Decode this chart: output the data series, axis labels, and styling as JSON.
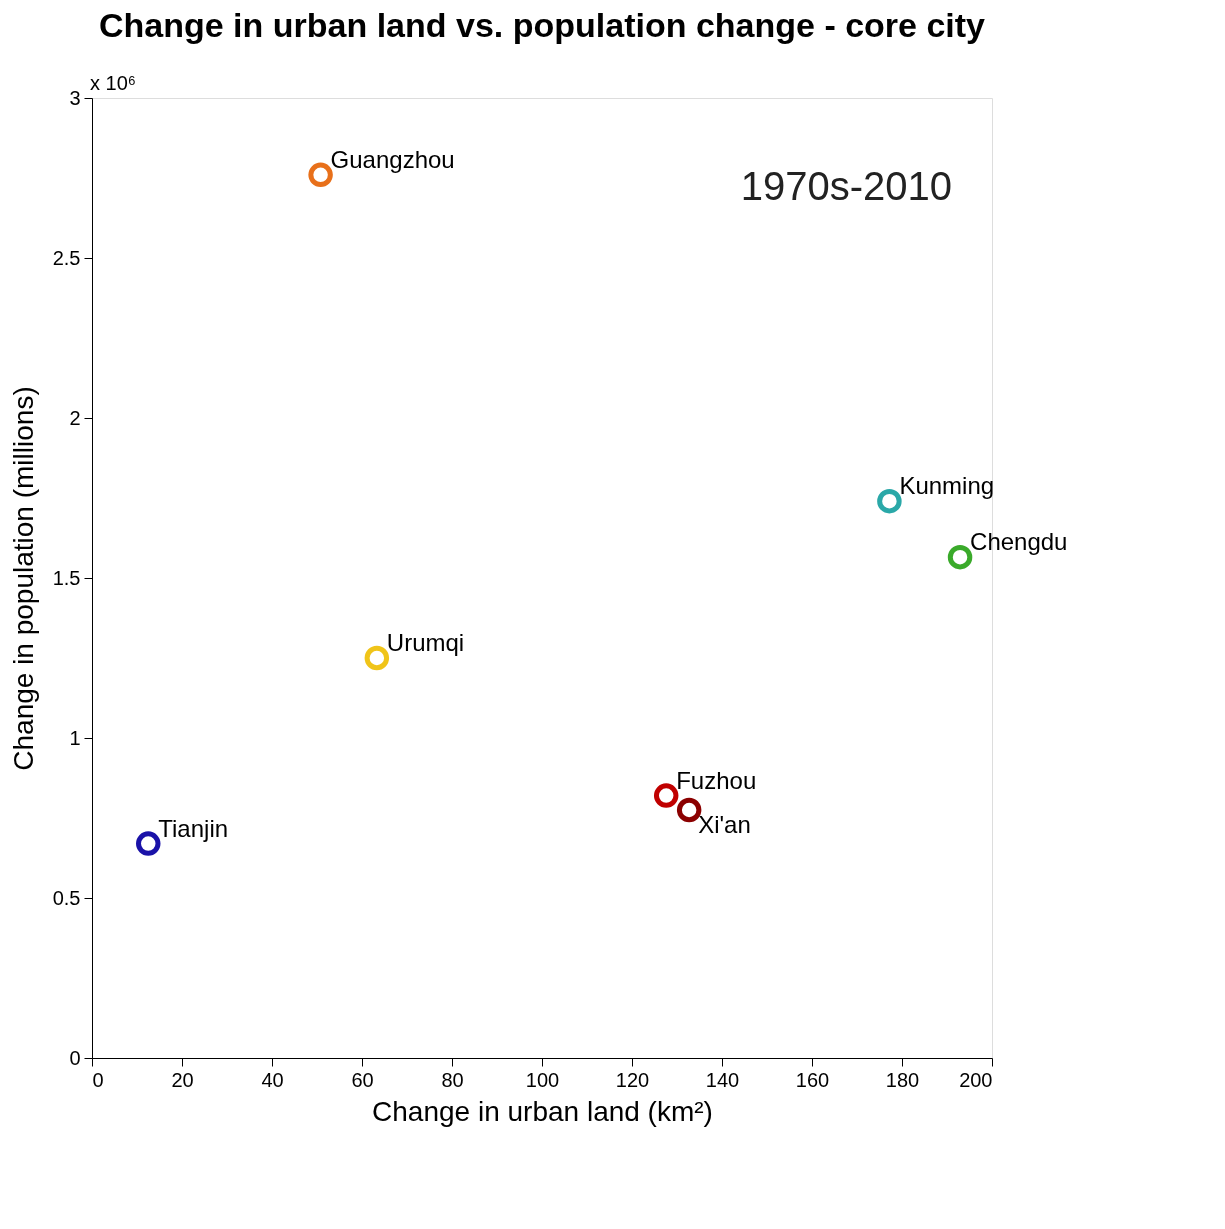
{
  "chart_data": {
    "type": "scatter",
    "title": "Change in urban land vs. population change - core city",
    "xlabel": "Change in urban land (km²)",
    "ylabel": "Change in population (millions)",
    "xlim": [
      0,
      200
    ],
    "xticks": [
      0,
      20,
      40,
      60,
      80,
      100,
      120,
      140,
      160,
      180,
      200
    ],
    "ylim": [
      0,
      3
    ],
    "yticks": [
      0,
      0.5,
      1,
      1.5,
      2,
      2.5,
      3
    ],
    "annotations": [
      "x 10⁶",
      "1970s-2010"
    ],
    "grid": false,
    "legend": false,
    "marker": "circle",
    "series": [
      {
        "name": "Guangzhou",
        "color": "#e8701a",
        "x": [
          50.8
        ],
        "values": [
          2.76
        ]
      },
      {
        "name": "Urumqi",
        "color": "#f0c419",
        "x": [
          63.3
        ],
        "values": [
          1.25
        ]
      },
      {
        "name": "Tianjin",
        "color": "#1a12a8",
        "x": [
          12.5
        ],
        "values": [
          0.67
        ]
      },
      {
        "name": "Fuzhou",
        "color": "#c00000",
        "x": [
          127.6
        ],
        "values": [
          0.82
        ]
      },
      {
        "name": "Xi'an",
        "color": "#8b0000",
        "x": [
          132.7
        ],
        "values": [
          0.775
        ]
      },
      {
        "name": "Kunming",
        "color": "#2aa8a8",
        "x": [
          177.2
        ],
        "values": [
          1.74
        ]
      },
      {
        "name": "Chengdu",
        "color": "#3aaa2a",
        "x": [
          192.9
        ],
        "values": [
          1.565
        ]
      }
    ]
  }
}
